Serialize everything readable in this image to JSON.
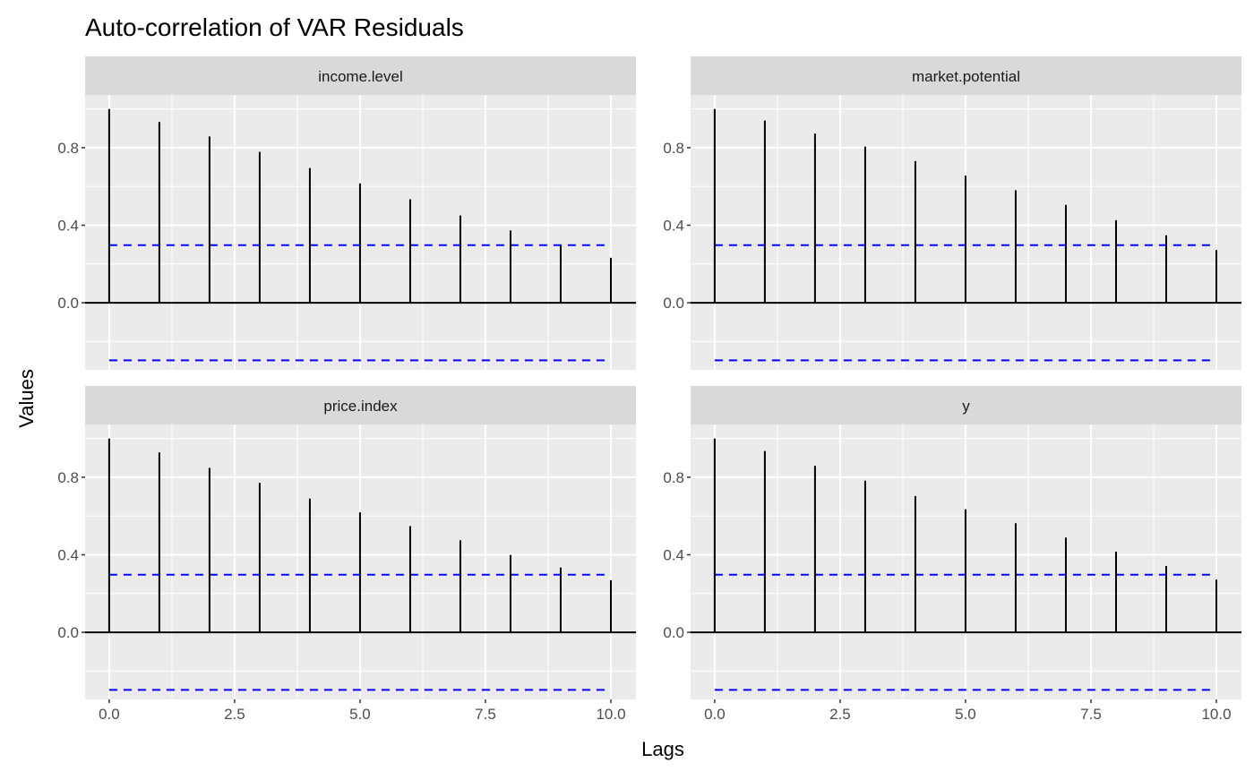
{
  "chart_data": {
    "type": "bar",
    "title": "Auto-correlation of VAR Residuals",
    "xlabel": "Lags",
    "ylabel": "Values",
    "xlim": [
      -0.48,
      10.5
    ],
    "ylim": [
      -0.346,
      1.072
    ],
    "x_ticks": [
      "0.0",
      "2.5",
      "5.0",
      "7.5",
      "10.0"
    ],
    "x_tick_values": [
      0,
      2.5,
      5,
      7.5,
      10
    ],
    "y_ticks": [
      "0.0",
      "0.4",
      "0.8"
    ],
    "y_tick_values": [
      0,
      0.4,
      0.8
    ],
    "grid": true,
    "confidence_bound": 0.297,
    "colors": {
      "bars": "#000000",
      "bounds": "#0000ff",
      "panel_bg": "#ebebeb",
      "strip_bg": "#d9d9d9"
    },
    "lags": [
      0,
      1,
      2,
      3,
      4,
      5,
      6,
      7,
      8,
      9,
      10
    ],
    "panels": [
      {
        "name": "income.level",
        "values": [
          1.0,
          0.933,
          0.858,
          0.778,
          0.695,
          0.616,
          0.534,
          0.45,
          0.373,
          0.297,
          0.232
        ]
      },
      {
        "name": "market.potential",
        "values": [
          1.0,
          0.94,
          0.873,
          0.805,
          0.731,
          0.656,
          0.58,
          0.505,
          0.426,
          0.348,
          0.272
        ]
      },
      {
        "name": "price.index",
        "values": [
          1.0,
          0.928,
          0.848,
          0.771,
          0.69,
          0.619,
          0.548,
          0.475,
          0.399,
          0.334,
          0.269
        ]
      },
      {
        "name": "y",
        "values": [
          1.0,
          0.935,
          0.859,
          0.782,
          0.703,
          0.635,
          0.563,
          0.489,
          0.416,
          0.342,
          0.272
        ]
      }
    ]
  }
}
